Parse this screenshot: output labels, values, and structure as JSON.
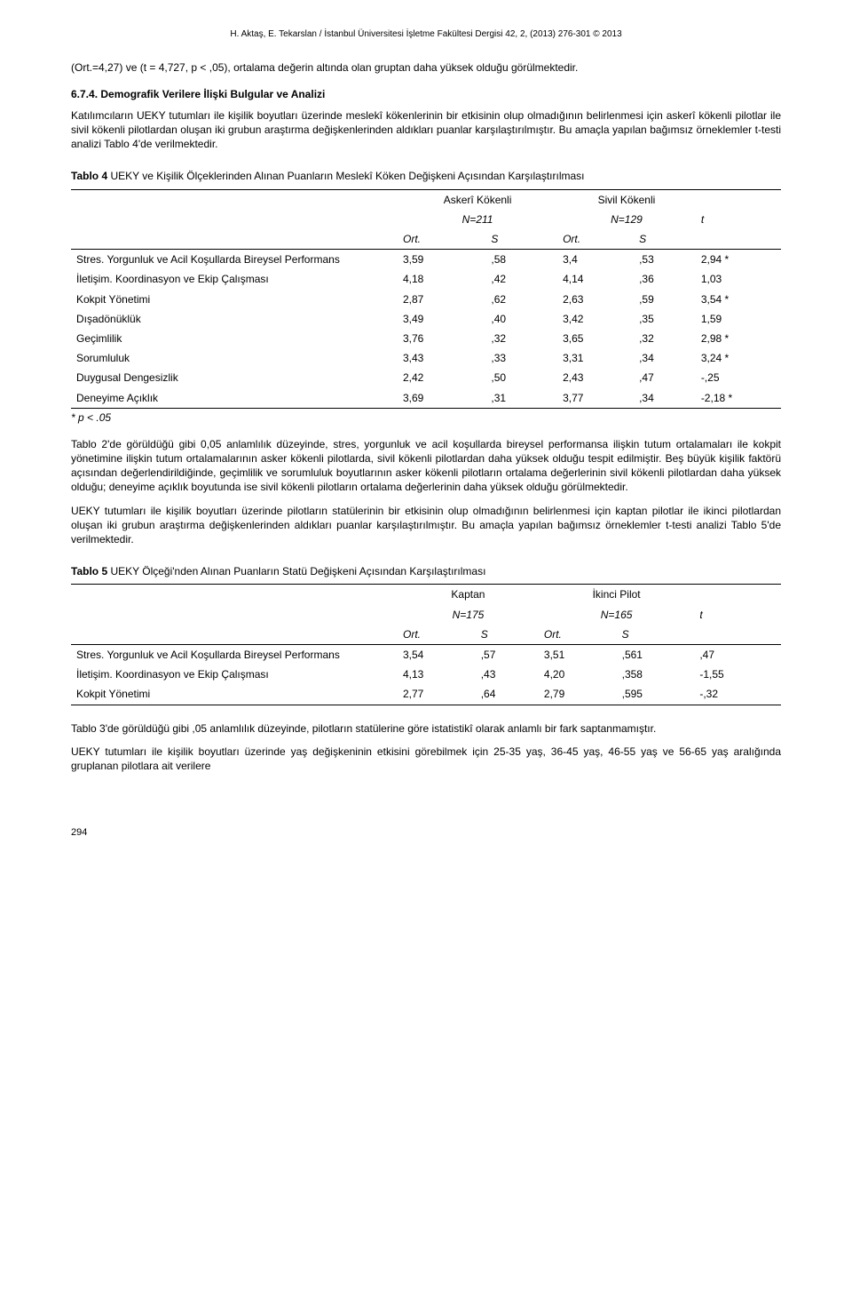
{
  "running_head": "H. Aktaş, E. Tekarslan / İstanbul Üniversitesi İşletme Fakültesi Dergisi 42, 2, (2013) 276-301 © 2013",
  "para1": "(Ort.=4,27) ve (t = 4,727, p < ,05), ortalama değerin altında olan gruptan daha yüksek olduğu görülmektedir.",
  "section_num": "6.7.4.",
  "section_title": "Demografik Verilere İlişki Bulgular ve Analizi",
  "para2": "Katılımcıların UEKY tutumları ile kişilik boyutları üzerinde meslekî kökenlerinin bir etkisinin olup olmadığının belirlenmesi için askerî kökenli pilotlar ile sivil kökenli pilotlardan oluşan iki grubun araştırma değişkenlerinden aldıkları puanlar karşılaştırılmıştır. Bu amaçla yapılan bağımsız örneklemler t-testi analizi Tablo 4'de verilmektedir.",
  "t4_caption_bold": "Tablo 4",
  "t4_caption_rest": " UEKY ve Kişilik Ölçeklerinden Alınan Puanların Meslekî Köken Değişkeni Açısından Karşılaştırılması",
  "t4": {
    "group1_label": "Askerî Kökenli",
    "group1_n": "N=211",
    "group2_label": "Sivil Kökenli",
    "group2_n": "N=129",
    "t_label": "t",
    "ort": "Ort.",
    "s": "S",
    "rows": [
      {
        "label": "Stres. Yorgunluk ve Acil Koşullarda Bireysel Performans",
        "o1": "3,59",
        "s1": ",58",
        "o2": "3,4",
        "s2": ",53",
        "t": "2,94 *"
      },
      {
        "label": "İletişim. Koordinasyon ve Ekip Çalışması",
        "o1": "4,18",
        "s1": ",42",
        "o2": "4,14",
        "s2": ",36",
        "t": "1,03"
      },
      {
        "label": "Kokpit Yönetimi",
        "o1": "2,87",
        "s1": ",62",
        "o2": "2,63",
        "s2": ",59",
        "t": "3,54 *"
      },
      {
        "label": "Dışadönüklük",
        "o1": "3,49",
        "s1": ",40",
        "o2": "3,42",
        "s2": ",35",
        "t": "1,59"
      },
      {
        "label": "Geçimlilik",
        "o1": "3,76",
        "s1": ",32",
        "o2": "3,65",
        "s2": ",32",
        "t": "2,98 *"
      },
      {
        "label": "Sorumluluk",
        "o1": "3,43",
        "s1": ",33",
        "o2": "3,31",
        "s2": ",34",
        "t": "3,24 *"
      },
      {
        "label": "Duygusal Dengesizlik",
        "o1": "2,42",
        "s1": ",50",
        "o2": "2,43",
        "s2": ",47",
        "t": "-,25"
      },
      {
        "label": "Deneyime Açıklık",
        "o1": "3,69",
        "s1": ",31",
        "o2": "3,77",
        "s2": ",34",
        "t": "-2,18 *"
      }
    ]
  },
  "t4_footnote": "*   p < .05",
  "para3": "Tablo 2'de görüldüğü gibi 0,05 anlamlılık düzeyinde, stres, yorgunluk ve acil koşullarda bireysel performansa ilişkin tutum ortalamaları ile kokpit yönetimine ilişkin tutum ortalamalarının asker kökenli pilotlarda, sivil kökenli pilotlardan daha yüksek olduğu tespit edilmiştir. Beş büyük kişilik faktörü açısından değerlendirildiğinde, geçimlilik ve sorumluluk boyutlarının asker kökenli pilotların ortalama değerlerinin sivil kökenli pilotlardan daha yüksek olduğu; deneyime açıklık boyutunda ise sivil kökenli pilotların ortalama değerlerinin daha yüksek olduğu görülmektedir.",
  "para4": "UEKY tutumları ile kişilik boyutları üzerinde pilotların statülerinin bir etkisinin olup olmadığının belirlenmesi için kaptan pilotlar ile ikinci pilotlardan oluşan iki grubun araştırma değişkenlerinden aldıkları puanlar karşılaştırılmıştır. Bu amaçla yapılan bağımsız örneklemler t-testi analizi Tablo 5'de verilmektedir.",
  "t5_caption_bold": "Tablo 5",
  "t5_caption_rest": " UEKY Ölçeği'nden Alınan Puanların Statü Değişkeni Açısından Karşılaştırılması",
  "t5": {
    "group1_label": "Kaptan",
    "group1_n": "N=175",
    "group2_label": "İkinci Pilot",
    "group2_n": "N=165",
    "t_label": "t",
    "ort": "Ort.",
    "s": "S",
    "rows": [
      {
        "label": "Stres. Yorgunluk ve Acil Koşullarda Bireysel Performans",
        "o1": "3,54",
        "s1": ",57",
        "o2": "3,51",
        "s2": ",561",
        "t": ",47"
      },
      {
        "label": "İletişim. Koordinasyon ve Ekip Çalışması",
        "o1": "4,13",
        "s1": ",43",
        "o2": "4,20",
        "s2": ",358",
        "t": "-1,55"
      },
      {
        "label": "Kokpit Yönetimi",
        "o1": "2,77",
        "s1": ",64",
        "o2": "2,79",
        "s2": ",595",
        "t": "-,32"
      }
    ]
  },
  "para5": "Tablo 3'de görüldüğü gibi ,05 anlamlılık düzeyinde, pilotların statülerine göre istatistikî olarak anlamlı bir fark saptanmamıştır.",
  "para6": "UEKY tutumları ile kişilik boyutları üzerinde yaş değişkeninin etkisini görebilmek için 25-35 yaş, 36-45 yaş, 46-55 yaş ve 56-65 yaş aralığında gruplanan pilotlara ait verilere",
  "page_number": "294"
}
